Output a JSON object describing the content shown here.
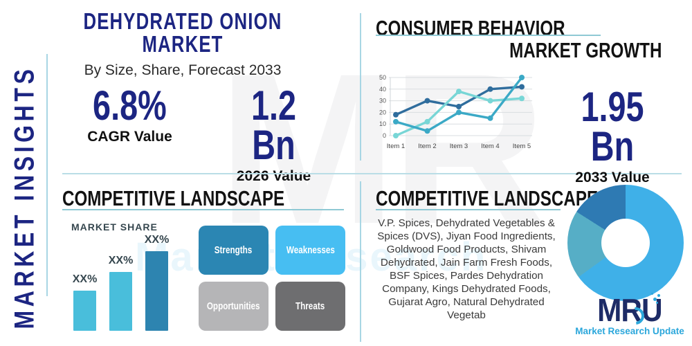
{
  "colors": {
    "navy": "#1c2582",
    "cyan": "#2ba7db",
    "logo_navy": "#1d2b66",
    "divider": "#8fc9d4",
    "divider2": "#b9dde6",
    "rail": "#a8d6e4"
  },
  "sidebar": {
    "vertical_label": "MARKET INSIGHTS"
  },
  "header": {
    "title": "DEHYDRATED ONION MARKET",
    "subtitle": "By Size, Share, Forecast 2033"
  },
  "stats": {
    "cagr": {
      "value": "6.8%",
      "label": "CAGR Value"
    },
    "base": {
      "value": "1.2 Bn",
      "label": "2026 Value"
    },
    "forecast": {
      "value": "1.95 Bn",
      "label": "2033 Value"
    }
  },
  "sections": {
    "consumer_behavior": {
      "title": "CONSUMER BEHAVIOR"
    },
    "market_growth": {
      "title": "MARKET GROWTH"
    },
    "competitive_left": {
      "title": "COMPETITIVE LANDSCAPE",
      "chart_label": "MARKET SHARE"
    },
    "competitive_right": {
      "title": "COMPETITIVE LANDSCAPE",
      "companies": "V.P. Spices, Dehydrated Vegetables & Spices (DVS), Jiyan Food Ingredients, Goldwood Food Products, Shivam Dehydrated, Jain Farm Fresh Foods, BSF Spices, Pardes Dehydration Company, Kings Dehydrated Foods, Gujarat Agro, Natural Dehydrated Vegetab"
    }
  },
  "swot": [
    {
      "label": "Strengths",
      "color": "#2b86b3"
    },
    {
      "label": "Weaknesses",
      "color": "#47bef2"
    },
    {
      "label": "Opportunities",
      "color": "#b5b5b7"
    },
    {
      "label": "Threats",
      "color": "#6e6e70"
    }
  ],
  "brand": {
    "logo_text": "MRU",
    "tagline": "Market Research Update"
  },
  "watermark": {
    "big": "MR",
    "strip": "Market Research"
  },
  "chart_data": [
    {
      "type": "line",
      "title": "CONSUMER BEHAVIOR",
      "categories": [
        "Item 1",
        "Item 2",
        "Item 3",
        "Item 4",
        "Item 5"
      ],
      "series": [
        {
          "name": "dark-blue-series",
          "color": "#2f6d9d",
          "values": [
            18,
            30,
            25,
            40,
            42
          ]
        },
        {
          "name": "light-teal-series",
          "color": "#78d6d6",
          "values": [
            0,
            12,
            38,
            30,
            32
          ]
        },
        {
          "name": "teal-series",
          "color": "#3ba9c6",
          "values": [
            12,
            4,
            20,
            15,
            50
          ]
        }
      ],
      "ylim": [
        0,
        50
      ],
      "yticks": [
        0,
        10,
        20,
        30,
        40,
        50
      ],
      "grid": true,
      "legend": false,
      "xlabel": "",
      "ylabel": ""
    },
    {
      "type": "bar",
      "title": "MARKET SHARE",
      "categories": [
        "XX%",
        "XX%",
        "XX%"
      ],
      "values": [
        25,
        37,
        50
      ],
      "colors": [
        "#49bedb",
        "#49bedb",
        "#2d84b0"
      ],
      "xlabel": "",
      "ylabel": ""
    },
    {
      "type": "pie",
      "title": "",
      "donut": true,
      "slices": [
        {
          "name": "light-blue",
          "value": 65,
          "color": "#3fb0e8"
        },
        {
          "name": "teal",
          "value": 19,
          "color": "#56aec6"
        },
        {
          "name": "dark-blue",
          "value": 16,
          "color": "#2e7ab3"
        }
      ]
    }
  ]
}
